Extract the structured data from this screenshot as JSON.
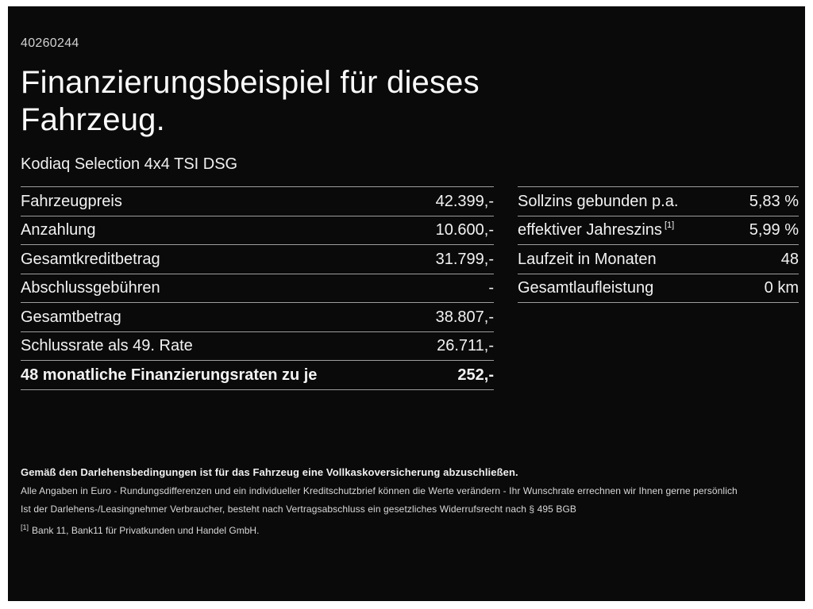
{
  "header": {
    "document_id": "40260244",
    "title_line1": "Finanzierungsbeispiel für dieses",
    "title_line2": "Fahrzeug.",
    "vehicle": "Kodiaq Selection 4x4 TSI DSG"
  },
  "financing_table": {
    "rows": [
      {
        "label": "Fahrzeugpreis",
        "value": "42.399,-"
      },
      {
        "label": "Anzahlung",
        "value": "10.600,-"
      },
      {
        "label": "Gesamtkreditbetrag",
        "value": "31.799,-"
      },
      {
        "label": "Abschlussgebühren",
        "value": "-"
      },
      {
        "label": "Gesamtbetrag",
        "value": "38.807,-"
      },
      {
        "label": "Schlussrate als 49. Rate",
        "value": "26.711,-"
      },
      {
        "label": "48 monatliche Finanzierungsraten zu je",
        "value": "252,-"
      }
    ]
  },
  "conditions_table": {
    "rows": [
      {
        "label": "Sollzins gebunden p.a.",
        "value": "5,83 %"
      },
      {
        "label": "effektiver Jahreszins",
        "sup": "[1]",
        "value": "5,99 %"
      },
      {
        "label": "Laufzeit in Monaten",
        "value": "48"
      },
      {
        "label": "Gesamtlaufleistung",
        "value": "0 km"
      }
    ]
  },
  "footer": {
    "insurance_note": "Gemäß den Darlehensbedingungen ist für das Fahrzeug eine Vollkaskoversicherung abzuschließen.",
    "disclaimer_line1": "Alle Angaben in Euro - Rundungsdifferenzen und ein individueller Kreditschutzbrief können die Werte verändern - Ihr Wunschrate errechnen wir Ihnen gerne persönlich",
    "disclaimer_line2": "Ist der Darlehens-/Leasingnehmer Verbraucher, besteht nach Vertragsabschluss ein gesetzliches Widerrufsrecht nach § 495 BGB",
    "footnote_marker": "[1]",
    "footnote_text": "Bank 11, Bank11 für Privatkunden und Handel GmbH."
  },
  "colors": {
    "background": "#0a0a0a",
    "frame": "#ffffff",
    "text": "#f5f5f5",
    "muted_text": "#d9d9d9",
    "divider": "#9e9e9e"
  }
}
